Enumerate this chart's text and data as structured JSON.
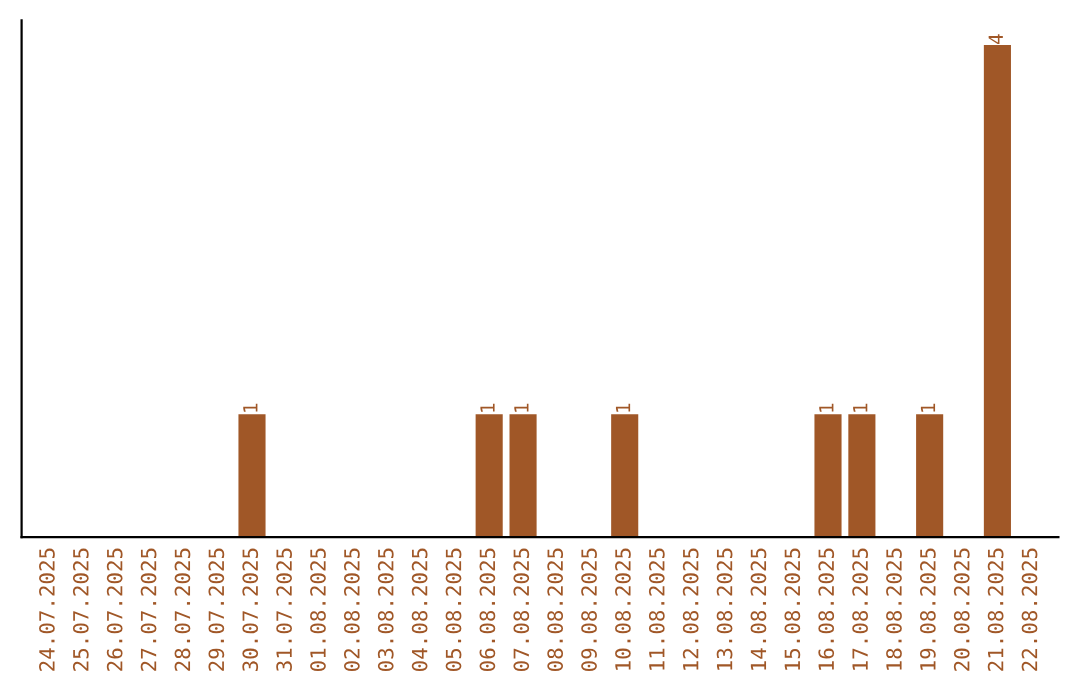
{
  "chart_data": {
    "type": "bar",
    "categories": [
      "24.07.2025",
      "25.07.2025",
      "26.07.2025",
      "27.07.2025",
      "28.07.2025",
      "29.07.2025",
      "30.07.2025",
      "31.07.2025",
      "01.08.2025",
      "02.08.2025",
      "03.08.2025",
      "04.08.2025",
      "05.08.2025",
      "06.08.2025",
      "07.08.2025",
      "08.08.2025",
      "09.08.2025",
      "10.08.2025",
      "11.08.2025",
      "12.08.2025",
      "13.08.2025",
      "14.08.2025",
      "15.08.2025",
      "16.08.2025",
      "17.08.2025",
      "18.08.2025",
      "19.08.2025",
      "20.08.2025",
      "21.08.2025",
      "22.08.2025"
    ],
    "values": [
      0,
      0,
      0,
      0,
      0,
      0,
      1,
      0,
      0,
      0,
      0,
      0,
      0,
      1,
      1,
      0,
      0,
      1,
      0,
      0,
      0,
      0,
      0,
      1,
      1,
      0,
      1,
      0,
      4,
      0
    ],
    "value_labels": [
      null,
      null,
      null,
      null,
      null,
      null,
      "1",
      null,
      null,
      null,
      null,
      null,
      null,
      "1",
      "1",
      null,
      null,
      "1",
      null,
      null,
      null,
      null,
      null,
      "1",
      "1",
      null,
      "1",
      null,
      "4",
      null
    ],
    "color": "#a05727",
    "tick_labels": "x",
    "grid": false,
    "legend": false
  }
}
